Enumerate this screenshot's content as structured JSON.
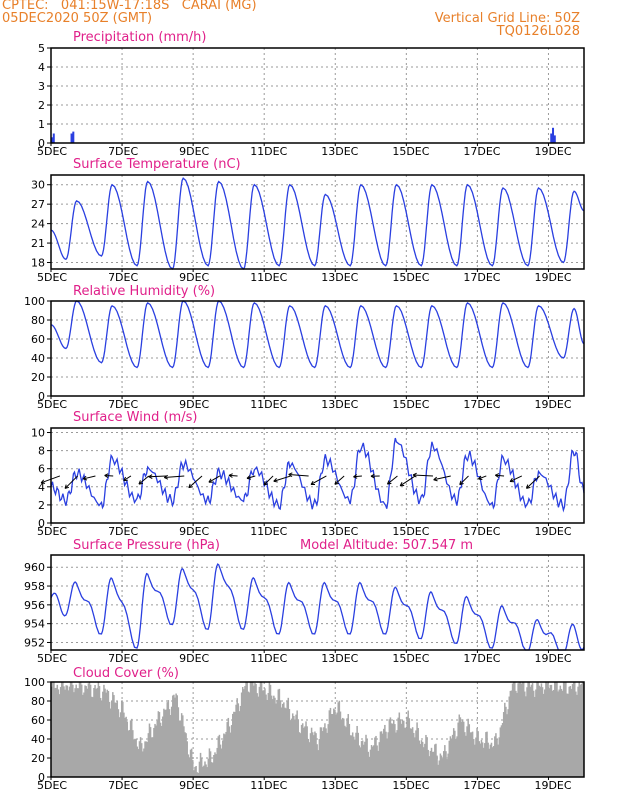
{
  "header": {
    "line1": "CPTEC:   041:15W-17:18S   CARAI (MG)",
    "line2": "05DEC2020 50Z (GMT)",
    "right1": "Vertical Grid Line: 50Z",
    "right2": "TQ0126L028"
  },
  "colors": {
    "header": "#e8802a",
    "title": "#e0208a",
    "line": "#2a3fe0",
    "bars": "#a8a8a8",
    "grid": "#9a9a9a",
    "frame": "#000000",
    "arrow": "#000000"
  },
  "x_axis": {
    "days": 15,
    "ticks": [
      {
        "label": "5DEC",
        "day": 0
      },
      {
        "label": "7DEC",
        "day": 2
      },
      {
        "label": "9DEC",
        "day": 4
      },
      {
        "label": "11DEC",
        "day": 6
      },
      {
        "label": "13DEC",
        "day": 8
      },
      {
        "label": "15DEC",
        "day": 10
      },
      {
        "label": "17DEC",
        "day": 12
      },
      {
        "label": "19DEC",
        "day": 14
      }
    ]
  },
  "chart_data": [
    {
      "id": "precip",
      "type": "bar",
      "title": "Precipitation (mm/h)",
      "ylim": [
        0,
        5
      ],
      "yticks": [
        0,
        1,
        2,
        3,
        4,
        5
      ],
      "grid": true,
      "x_days": [
        0.0,
        0.05,
        0.55,
        0.6,
        14.05,
        14.1,
        14.15
      ],
      "values": [
        0.3,
        0.5,
        0.5,
        0.6,
        0.5,
        0.8,
        0.4
      ]
    },
    {
      "id": "temp",
      "type": "line",
      "title": "Surface Temperature (nC)",
      "ylim": [
        17,
        31.5
      ],
      "yticks": [
        18,
        21,
        24,
        27,
        30
      ],
      "grid": true,
      "daily_min": [
        18.5,
        19.0,
        17.5,
        17.0,
        17.5,
        17.0,
        17.5,
        17.5,
        17.5,
        17.5,
        17.5,
        17.5,
        17.5,
        17.5,
        18.0
      ],
      "daily_max": [
        27.5,
        30.0,
        30.5,
        31.0,
        30.5,
        30.0,
        30.0,
        28.5,
        30.0,
        30.0,
        30.0,
        30.0,
        29.5,
        29.5,
        29.0
      ],
      "end_value": 26.0
    },
    {
      "id": "rh",
      "type": "line",
      "title": "Relative Humidity (%)",
      "ylim": [
        0,
        100
      ],
      "yticks": [
        0,
        20,
        40,
        60,
        80,
        100
      ],
      "grid": true,
      "daily_min": [
        50,
        35,
        30,
        30,
        30,
        30,
        30,
        30,
        30,
        30,
        30,
        30,
        30,
        30,
        40
      ],
      "daily_max": [
        100,
        95,
        98,
        100,
        100,
        98,
        95,
        95,
        95,
        95,
        95,
        98,
        98,
        95,
        92
      ],
      "end_value": 55
    },
    {
      "id": "wind",
      "type": "line",
      "title": "Surface Wind (m/s)",
      "ylim": [
        0,
        10.5
      ],
      "yticks": [
        0,
        2,
        4,
        6,
        8,
        10
      ],
      "grid": true,
      "daily_min": [
        2.5,
        2.0,
        2.5,
        2.5,
        2.5,
        2.5,
        2.0,
        2.0,
        2.5,
        2.0,
        2.5,
        2.5,
        2.0,
        2.0,
        2.0
      ],
      "daily_max": [
        5.5,
        7.0,
        6.0,
        6.5,
        5.5,
        6.0,
        6.5,
        7.0,
        8.5,
        9.0,
        8.5,
        7.5,
        7.0,
        5.5,
        8.0
      ],
      "end_value": 3.5
    },
    {
      "id": "pressure",
      "type": "line",
      "title": "Surface Pressure (hPa)",
      "subtitle": "Model Altitude: 507.547 m",
      "ylim": [
        951.2,
        961.3
      ],
      "yticks": [
        952,
        954,
        956,
        958,
        960
      ],
      "grid": true,
      "daily_min": [
        955.5,
        953.5,
        952.0,
        954.5,
        954.0,
        954.0,
        953.5,
        953.5,
        953.5,
        953.5,
        953.0,
        952.5,
        952.0,
        951.5,
        951.0
      ],
      "daily_max": [
        958.0,
        958.5,
        959.0,
        959.5,
        960.0,
        958.5,
        958.0,
        958.0,
        958.0,
        957.5,
        957.0,
        956.5,
        955.5,
        954.0,
        953.5
      ],
      "end_value": 951.5
    },
    {
      "id": "cloud",
      "type": "bar",
      "title": "Cloud Cover (%)",
      "ylim": [
        0,
        100
      ],
      "yticks": [
        0,
        20,
        40,
        60,
        80,
        100
      ],
      "grid": true,
      "x_days": [
        0,
        0.5,
        1,
        1.5,
        2,
        2.5,
        3,
        3.5,
        4,
        4.5,
        5,
        5.5,
        6,
        6.5,
        7,
        7.5,
        8,
        8.5,
        9,
        9.5,
        10,
        10.5,
        11,
        11.5,
        12,
        12.5,
        13,
        13.5,
        14,
        14.5,
        15
      ],
      "values": [
        95,
        98,
        95,
        90,
        70,
        30,
        60,
        85,
        10,
        20,
        55,
        100,
        92,
        80,
        55,
        40,
        75,
        45,
        30,
        55,
        60,
        35,
        20,
        60,
        40,
        35,
        100,
        95,
        98,
        95,
        98
      ]
    }
  ]
}
